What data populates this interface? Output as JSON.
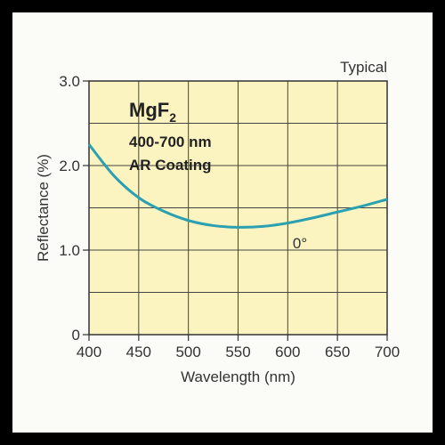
{
  "chart_data": {
    "type": "line",
    "note": "Typical",
    "xlabel": "Wavelength (nm)",
    "ylabel": "Reflectance (%)",
    "xlim": [
      400,
      700
    ],
    "ylim": [
      0,
      3.0
    ],
    "x_ticks": [
      "400",
      "450",
      "500",
      "550",
      "600",
      "650",
      "700"
    ],
    "y_ticks": [
      "0",
      "1.0",
      "2.0",
      "3.0"
    ],
    "grid": true,
    "annotation": {
      "formula_main": "MgF",
      "formula_sub": "2",
      "line1": "400-700 nm",
      "line2": "AR Coating"
    },
    "series": [
      {
        "name": "0°",
        "color": "#2aa0b0",
        "x": [
          400,
          425,
          450,
          475,
          500,
          525,
          550,
          575,
          600,
          625,
          650,
          675,
          700
        ],
        "y": [
          2.25,
          1.88,
          1.62,
          1.46,
          1.35,
          1.29,
          1.27,
          1.28,
          1.32,
          1.38,
          1.45,
          1.52,
          1.6
        ]
      }
    ],
    "colors": {
      "plot_background": "#fbf3c0",
      "grid": "#444444",
      "curve": "#2aa0b0"
    }
  }
}
